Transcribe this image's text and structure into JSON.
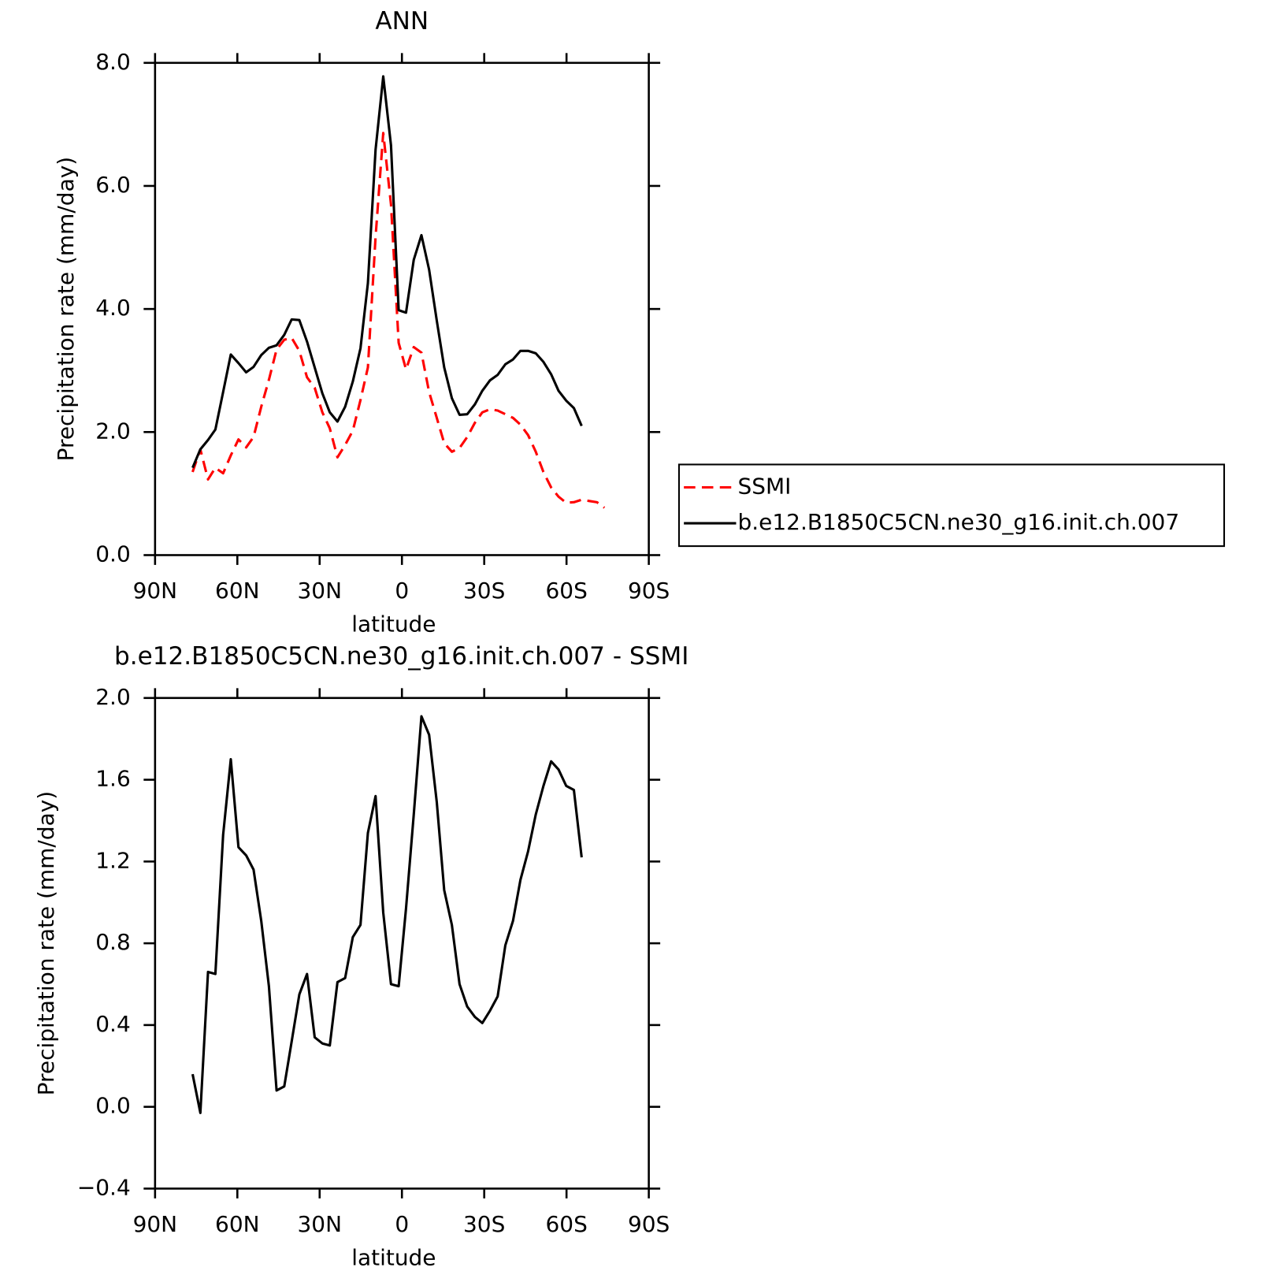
{
  "chart_data": [
    {
      "type": "line",
      "title": "ANN",
      "xlabel": "latitude",
      "ylabel": "Precipitation rate (mm/day)",
      "x": [
        76.3,
        73.5,
        70.7,
        68.0,
        65.2,
        62.4,
        59.6,
        56.8,
        54.1,
        51.3,
        48.5,
        45.7,
        42.9,
        40.2,
        37.4,
        34.6,
        31.8,
        29.0,
        26.3,
        23.5,
        20.7,
        17.9,
        15.1,
        12.4,
        9.6,
        6.8,
        4.0,
        1.2,
        -1.5,
        -4.3,
        -7.1,
        -9.9,
        -12.7,
        -15.4,
        -18.2,
        -21.0,
        -23.8,
        -26.6,
        -29.3,
        -32.1,
        -34.9,
        -37.7,
        -40.5,
        -43.2,
        -46.0,
        -48.8,
        -51.6,
        -54.4,
        -57.1,
        -59.9,
        -62.7,
        -65.5,
        -68.3,
        -71.1,
        -73.8
      ],
      "series": [
        {
          "name": "SSMI",
          "color": "#ff0000",
          "dash": true,
          "values": [
            1.35,
            1.72,
            1.23,
            1.42,
            1.33,
            1.62,
            1.88,
            1.75,
            1.92,
            2.41,
            2.85,
            3.34,
            3.5,
            3.53,
            3.32,
            2.89,
            2.72,
            2.32,
            2.06,
            1.59,
            1.79,
            2.02,
            2.52,
            3.05,
            5.17,
            6.86,
            5.7,
            3.45,
            3.02,
            3.38,
            3.29,
            2.65,
            2.23,
            1.82,
            1.68,
            1.74,
            1.92,
            2.15,
            2.32,
            2.37,
            2.35,
            2.29,
            2.23,
            2.12,
            1.95,
            1.68,
            1.35,
            1.1,
            0.95,
            0.85,
            0.86,
            0.9,
            0.88,
            0.86,
            0.77
          ]
        },
        {
          "name": "b.e12.B1850C5CN.ne30_g16.init.ch.007",
          "color": "#000000",
          "dash": false,
          "values": [
            1.42,
            1.72,
            1.87,
            2.04,
            2.65,
            3.26,
            3.12,
            2.97,
            3.06,
            3.25,
            3.37,
            3.41,
            3.58,
            3.83,
            3.82,
            3.47,
            3.05,
            2.63,
            2.32,
            2.17,
            2.41,
            2.82,
            3.36,
            4.42,
            6.59,
            7.78,
            6.66,
            3.98,
            3.94,
            4.8,
            5.2,
            4.64,
            3.81,
            3.05,
            2.55,
            2.28,
            2.29,
            2.45,
            2.67,
            2.84,
            2.93,
            3.1,
            3.18,
            3.32,
            3.32,
            3.28,
            3.14,
            2.94,
            2.67,
            2.51,
            2.39,
            2.1,
            null,
            null,
            null
          ]
        }
      ],
      "xlim": [
        90,
        -90
      ],
      "xticks": [
        {
          "value": 90,
          "label": "90N"
        },
        {
          "value": 60,
          "label": "60N"
        },
        {
          "value": 30,
          "label": "30N"
        },
        0,
        {
          "value": -30,
          "label": "30S"
        },
        {
          "value": -60,
          "label": "60S"
        },
        {
          "value": -90,
          "label": "90S"
        }
      ],
      "ylim": [
        0,
        8
      ],
      "yticks": [
        {
          "value": 0,
          "label": "0.0"
        },
        {
          "value": 2,
          "label": "2.0"
        },
        {
          "value": 4,
          "label": "4.0"
        },
        {
          "value": 6,
          "label": "6.0"
        },
        {
          "value": 8,
          "label": "8.0"
        }
      ],
      "legend": "outside-right"
    },
    {
      "type": "line",
      "title": "b.e12.B1850C5CN.ne30_g16.init.ch.007 - SSMI",
      "xlabel": "latitude",
      "ylabel": "Precipitation rate (mm/day)",
      "x": [
        76.3,
        73.5,
        70.7,
        68.0,
        65.2,
        62.4,
        59.6,
        56.8,
        54.1,
        51.3,
        48.5,
        45.7,
        42.9,
        40.2,
        37.4,
        34.6,
        31.8,
        29.0,
        26.3,
        23.5,
        20.7,
        17.9,
        15.1,
        12.4,
        9.6,
        6.8,
        4.0,
        1.2,
        -1.5,
        -4.3,
        -7.1,
        -9.9,
        -12.7,
        -15.4,
        -18.2,
        -21.0,
        -23.8,
        -26.6,
        -29.3,
        -32.1,
        -34.9,
        -37.7,
        -40.5,
        -43.2,
        -46.0,
        -48.8,
        -51.6,
        -54.4,
        -57.1,
        -59.9,
        -62.7,
        -65.5,
        -68.3,
        -71.1,
        -73.8
      ],
      "color": "#000000",
      "values": [
        0.16,
        -0.03,
        0.66,
        0.65,
        1.33,
        1.7,
        1.27,
        1.23,
        1.16,
        0.91,
        0.59,
        0.08,
        0.1,
        0.32,
        0.55,
        0.65,
        0.34,
        0.31,
        0.3,
        0.61,
        0.63,
        0.83,
        0.89,
        1.34,
        1.52,
        0.95,
        0.6,
        0.59,
        0.97,
        1.43,
        1.91,
        1.82,
        1.49,
        1.06,
        0.89,
        0.6,
        0.49,
        0.44,
        0.41,
        0.47,
        0.54,
        0.79,
        0.91,
        1.11,
        1.25,
        1.43,
        1.57,
        1.69,
        1.65,
        1.57,
        1.55,
        1.22,
        null,
        null,
        null
      ],
      "xlim": [
        90,
        -90
      ],
      "xticks": [
        {
          "value": 90,
          "label": "90N"
        },
        {
          "value": 60,
          "label": "60N"
        },
        {
          "value": 30,
          "label": "30N"
        },
        0,
        {
          "value": -30,
          "label": "30S"
        },
        {
          "value": -60,
          "label": "60S"
        },
        {
          "value": -90,
          "label": "90S"
        }
      ],
      "ylim": [
        -0.4,
        2
      ],
      "yticks": [
        {
          "value": -0.4,
          "label": "−0.4"
        },
        {
          "value": 0,
          "label": "0.0"
        },
        {
          "value": 0.4,
          "label": "0.4"
        },
        {
          "value": 0.8,
          "label": "0.8"
        },
        {
          "value": 1.2,
          "label": "1.2"
        },
        {
          "value": 1.6,
          "label": "1.6"
        },
        {
          "value": 2,
          "label": "2.0"
        }
      ]
    }
  ]
}
